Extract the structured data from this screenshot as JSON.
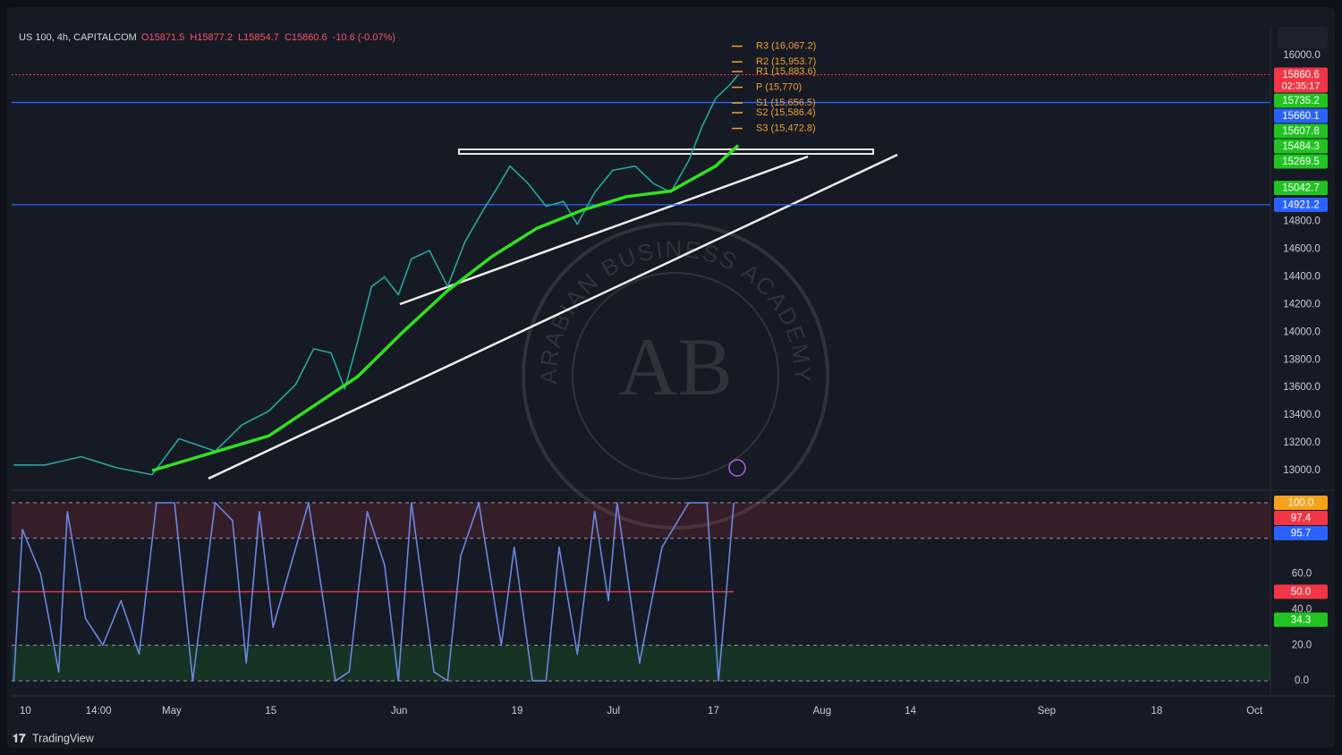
{
  "header": {
    "symbol": "US 100, 4h, CAPITALCOM",
    "ohlc": [
      "O15871.5",
      "H15877.2",
      "L15854.7",
      "C15860.6",
      "-10.6 (-0.07%)"
    ]
  },
  "footer": "TradingView",
  "watermark": {
    "text": "ARABIAN BUSINESS ACADEMY",
    "logo": "AB"
  },
  "chart_data": [
    {
      "type": "line",
      "x": [
        -1.6,
        2.7,
        7.7,
        12.6,
        17.5,
        21.2,
        26.2,
        29.9,
        33.6,
        37.3,
        39.8,
        42.2,
        44.1,
        45.9,
        47.8,
        49.6,
        51.5,
        53.3,
        55.8,
        58.3,
        60.7,
        63.2,
        65.1,
        66.9,
        69.4,
        71.9,
        74.3,
        76.2,
        78.6,
        81.1,
        84.2,
        86.7,
        89.1,
        91.6,
        93.5,
        95.3,
        97.2,
        98.4
      ],
      "series": [
        {
          "color": "#26a69a",
          "values": [
            13040,
            13040,
            13100,
            13020,
            12970,
            13230,
            13140,
            13330,
            13430,
            13620,
            13880,
            13850,
            13590,
            13940,
            14330,
            14400,
            14270,
            14530,
            14590,
            14330,
            14655,
            14880,
            15040,
            15200,
            15075,
            14910,
            14945,
            14780,
            15010,
            15170,
            15200,
            15075,
            15010,
            15240,
            15495,
            15690,
            15785,
            15860
          ]
        },
        {
          "color": "#32e020",
          "x": [
            17.5,
            33.6,
            45.9,
            52.1,
            58.3,
            64.5,
            70.6,
            76.8,
            83.0,
            89.1,
            95.3,
            98.4
          ],
          "values": [
            13000,
            13250,
            13680,
            14000,
            14300,
            14550,
            14750,
            14880,
            14980,
            15020,
            15200,
            15350
          ]
        }
      ],
      "xlim": [
        -1.9,
        171.9
      ],
      "xticks": [
        {
          "value": 0,
          "label": "10"
        },
        {
          "value": 10.1,
          "label": "14:00"
        },
        {
          "value": 20.2,
          "label": "May"
        },
        {
          "value": 33.9,
          "label": "15"
        },
        {
          "value": 51.6,
          "label": "Jun"
        },
        {
          "value": 67.9,
          "label": "19"
        },
        {
          "value": 81.2,
          "label": "Jul"
        },
        {
          "value": 95,
          "label": "17"
        },
        {
          "value": 110,
          "label": "Aug"
        },
        {
          "value": 122.2,
          "label": "14"
        },
        {
          "value": 141,
          "label": "Sep"
        },
        {
          "value": 156.2,
          "label": "18"
        },
        {
          "value": 169.7,
          "label": "Oct"
        }
      ],
      "ylim": [
        12909.5,
        16206.9
      ],
      "yticks": [
        {
          "value": 16000,
          "label": "16000.0"
        },
        {
          "value": 14800,
          "label": "14800.0"
        },
        {
          "value": 14600,
          "label": "14600.0"
        },
        {
          "value": 14400,
          "label": "14400.0"
        },
        {
          "value": 14200,
          "label": "14200.0"
        },
        {
          "value": 14000,
          "label": "14000.0"
        },
        {
          "value": 13800,
          "label": "13800.0"
        },
        {
          "value": 13600,
          "label": "13600.0"
        },
        {
          "value": 13400,
          "label": "13400.0"
        },
        {
          "value": 13200,
          "label": "13200.0"
        },
        {
          "value": 13000,
          "label": "13000.0"
        }
      ],
      "pivots": [
        {
          "value": 16067.2,
          "label": "R3 (16,067.2)"
        },
        {
          "value": 15953.7,
          "label": "R2 (15,953.7)"
        },
        {
          "value": 15883.6,
          "label": "R1 (15,883.6)"
        },
        {
          "value": 15770,
          "label": "P (15,770)"
        },
        {
          "value": 15656.5,
          "label": "S1 (15,656.5)"
        },
        {
          "value": 15586.4,
          "label": "S2 (15,586.4)"
        },
        {
          "value": 15472.8,
          "label": "S3 (15,472.8)"
        }
      ],
      "pivot_color": "#f0a030",
      "price_labels": [
        {
          "value": 15860.6,
          "color": "#f23645",
          "sublabel": "02:35:17",
          "line": "dotted"
        },
        {
          "value": 15735.2,
          "color": "#22c322"
        },
        {
          "value": 15660.1,
          "color": "#2962ff",
          "line": "solid"
        },
        {
          "value": 15607.8,
          "color": "#22c322"
        },
        {
          "value": 15484.3,
          "color": "#22c322"
        },
        {
          "value": 15269.5,
          "color": "#22c322"
        },
        {
          "value": 15042.7,
          "color": "#22c322"
        },
        {
          "value": 14921.2,
          "color": "#2962ff",
          "line": "solid"
        }
      ]
    },
    {
      "type": "line",
      "x": [
        -1.6,
        -0.4,
        2.1,
        4.6,
        5.8,
        8.3,
        10.7,
        13.2,
        15.7,
        18.1,
        20.6,
        23.1,
        26.2,
        28.6,
        30.5,
        32.3,
        34.2,
        39.1,
        42.8,
        44.7,
        47.2,
        49.6,
        51.5,
        53.3,
        56.4,
        58.3,
        60.1,
        62.6,
        65.7,
        67.5,
        70.0,
        71.9,
        73.7,
        76.2,
        78.6,
        80.5,
        81.7,
        84.8,
        87.9,
        91.6,
        94.1,
        95.7,
        96.8,
        97.8
      ],
      "series": [
        {
          "color": "#6a86e0",
          "values": [
            0,
            85,
            60,
            5,
            95,
            35,
            20,
            45,
            15,
            100,
            100,
            0,
            100,
            90,
            10,
            95,
            30,
            100,
            0,
            5,
            95,
            65,
            0,
            100,
            5,
            0,
            70,
            100,
            20,
            75,
            0,
            0,
            75,
            15,
            95,
            45,
            100,
            10,
            75,
            100,
            100,
            0,
            50,
            100
          ]
        }
      ],
      "xlim": [
        -1.9,
        171.9
      ],
      "ylim": [
        -7,
        103.5
      ],
      "yticks": [
        {
          "value": 60,
          "label": "60.0"
        },
        {
          "value": 40,
          "label": "40.0"
        },
        {
          "value": 20,
          "label": "20.0"
        },
        {
          "value": 0,
          "label": "0.0"
        }
      ],
      "bands": [
        {
          "range": [
            80,
            100
          ],
          "color": "#f23645"
        },
        {
          "range": [
            0,
            20
          ],
          "color": "#22c322"
        }
      ],
      "midline": 50,
      "price_labels": [
        {
          "value": 100.0,
          "label": "100.0",
          "color": "#f7a21b"
        },
        {
          "value": 97.4,
          "color": "#f23645"
        },
        {
          "value": 95.7,
          "color": "#2962ff"
        },
        {
          "value": 50.0,
          "label": "50.0",
          "color": "#f23645"
        },
        {
          "value": 34.3,
          "color": "#22c322"
        }
      ]
    }
  ]
}
